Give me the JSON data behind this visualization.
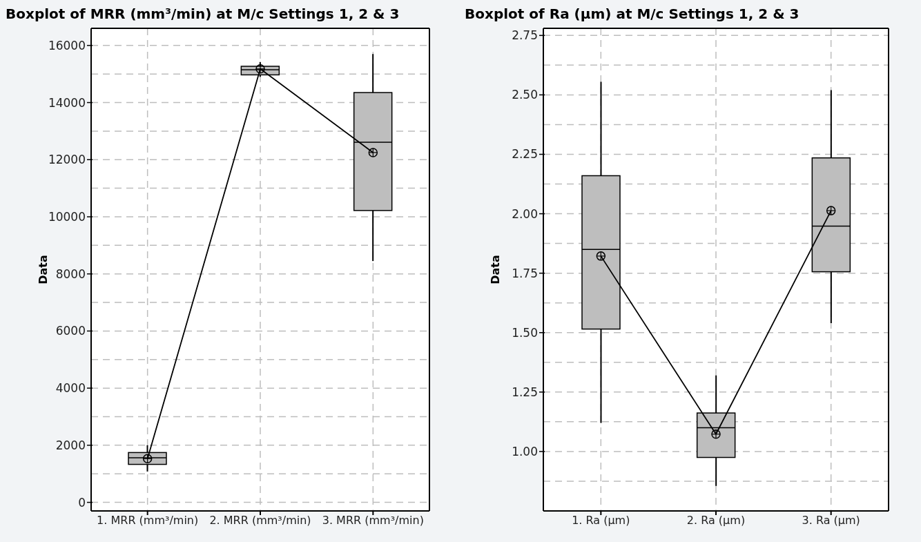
{
  "chart_data": [
    {
      "type": "box",
      "title": "Boxplot of MRR (mm³/min) at M/c Settings 1, 2 & 3",
      "ylabel": "Data",
      "categories": [
        "1. MRR (mm³/min)",
        "2. MRR (mm³/min)",
        "3. MRR (mm³/min)"
      ],
      "ylim": [
        -300,
        16600
      ],
      "yticks": [
        0,
        {
          "value": 1000,
          "label": null
        },
        2000,
        {
          "value": 3000,
          "label": null
        },
        4000,
        {
          "value": 5000,
          "label": null
        },
        6000,
        {
          "value": 7000,
          "label": null
        },
        8000,
        {
          "value": 9000,
          "label": null
        },
        10000,
        {
          "value": 11000,
          "label": null
        },
        12000,
        {
          "value": 13000,
          "label": null
        },
        14000,
        {
          "value": 15000,
          "label": null
        },
        16000
      ],
      "grid": true,
      "series": [
        {
          "color": "#bebebe",
          "boxes": [
            {
              "low": 1080,
              "q1": 1330,
              "median": 1560,
              "q3": 1745,
              "high": 2000
            },
            {
              "low": 14900,
              "q1": 14970,
              "median": 15150,
              "q3": 15270,
              "high": 15420
            },
            {
              "low": 8450,
              "q1": 10220,
              "median": 12610,
              "q3": 14350,
              "high": 15700
            }
          ]
        },
        {
          "type": "line",
          "color": "#000000",
          "marker": "circle",
          "values": [
            1530,
            15180,
            12250
          ]
        }
      ]
    },
    {
      "type": "box",
      "title": "Boxplot of Ra (µm) at M/c Settings 1, 2 & 3",
      "ylabel": "Data",
      "categories": [
        "1. Ra (µm)",
        "2. Ra (µm)",
        "3. Ra (µm)"
      ],
      "ylim": [
        0.75,
        2.78
      ],
      "yticks": [
        {
          "value": 0.875,
          "label": null
        },
        {
          "value": 1,
          "label": "1.00"
        },
        {
          "value": 1.125,
          "label": null
        },
        {
          "value": 1.25,
          "label": "1.25"
        },
        {
          "value": 1.375,
          "label": null
        },
        {
          "value": 1.5,
          "label": "1.50"
        },
        {
          "value": 1.625,
          "label": null
        },
        {
          "value": 1.75,
          "label": "1.75"
        },
        {
          "value": 1.875,
          "label": null
        },
        {
          "value": 2,
          "label": "2.00"
        },
        {
          "value": 2.125,
          "label": null
        },
        {
          "value": 2.25,
          "label": "2.25"
        },
        {
          "value": 2.375,
          "label": null
        },
        {
          "value": 2.5,
          "label": "2.50"
        },
        {
          "value": 2.625,
          "label": null
        },
        {
          "value": 2.75,
          "label": "2.75"
        }
      ],
      "grid": true,
      "series": [
        {
          "color": "#bebebe",
          "boxes": [
            {
              "low": 1.12,
              "q1": 1.515,
              "median": 1.85,
              "q3": 2.16,
              "high": 2.555
            },
            {
              "low": 0.855,
              "q1": 0.975,
              "median": 1.1,
              "q3": 1.162,
              "high": 1.32
            },
            {
              "low": 1.54,
              "q1": 1.756,
              "median": 1.948,
              "q3": 2.235,
              "high": 2.52
            }
          ]
        },
        {
          "type": "line",
          "color": "#000000",
          "marker": "circle",
          "values": [
            1.822,
            1.073,
            2.013
          ]
        }
      ]
    }
  ]
}
